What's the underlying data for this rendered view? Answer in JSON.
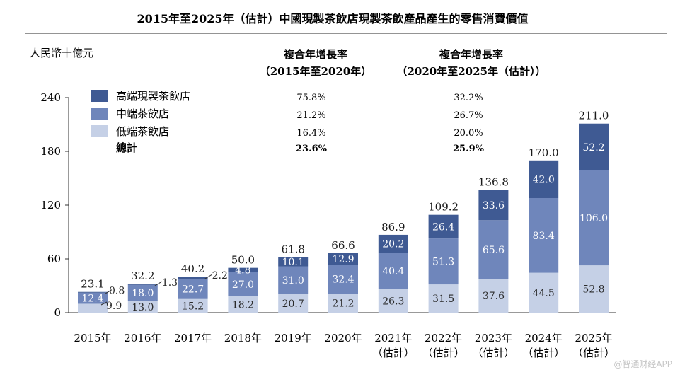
{
  "chart_data": {
    "type": "bar",
    "stacked": true,
    "title": "2015年至2025年（估計）中國現製茶飲店現製茶飲產品產生的零售消費價值",
    "ylabel": "人民幣十億元",
    "ylim": [
      0,
      240
    ],
    "yticks": [
      "0",
      "60",
      "120",
      "180",
      "240"
    ],
    "ytick_values": [
      0,
      60,
      120,
      180,
      240
    ],
    "categories": [
      [
        "2015年"
      ],
      [
        "2016年"
      ],
      [
        "2017年"
      ],
      [
        "2018年"
      ],
      [
        "2019年"
      ],
      [
        "2020年"
      ],
      [
        "2021年",
        "（估計）"
      ],
      [
        "2022年",
        "（估計）"
      ],
      [
        "2023年",
        "（估計）"
      ],
      [
        "2024年",
        "（估計）"
      ],
      [
        "2025年",
        "（估計）"
      ]
    ],
    "series": [
      {
        "name": "低端茶飲店",
        "color": "#c5d0e6",
        "label_color": "#2a2a2a",
        "values": [
          9.9,
          13.0,
          15.2,
          18.2,
          20.7,
          21.2,
          26.3,
          31.5,
          37.6,
          44.5,
          52.8
        ],
        "labels": [
          "9.9",
          "13.0",
          "15.2",
          "18.2",
          "20.7",
          "21.2",
          "26.3",
          "31.5",
          "37.6",
          "44.5",
          "52.8"
        ]
      },
      {
        "name": "中端茶飲店",
        "color": "#6f86bb",
        "label_color": "#ffffff",
        "values": [
          12.4,
          18.0,
          22.7,
          27.0,
          31.0,
          32.4,
          40.4,
          51.3,
          65.6,
          83.4,
          106.0
        ],
        "labels": [
          "12.4",
          "18.0",
          "22.7",
          "27.0",
          "31.0",
          "32.4",
          "40.4",
          "51.3",
          "65.6",
          "83.4",
          "106.0"
        ]
      },
      {
        "name": "高端現製茶飲店",
        "color": "#3f5a93",
        "label_color": "#ffffff",
        "values": [
          0.8,
          1.3,
          2.2,
          4.8,
          10.1,
          12.9,
          20.2,
          26.4,
          33.6,
          42.0,
          52.2
        ],
        "labels": [
          "0.8",
          "1.3",
          "2.2",
          "4.8",
          "10.1",
          "12.9",
          "20.2",
          "26.4",
          "33.6",
          "42.0",
          "52.2"
        ]
      }
    ],
    "totals": [
      23.1,
      32.2,
      40.2,
      50.0,
      61.8,
      66.6,
      86.9,
      109.2,
      136.8,
      170.0,
      211.0
    ],
    "total_labels": [
      "23.1",
      "32.2",
      "40.2",
      "50.0",
      "61.8",
      "66.6",
      "86.9",
      "109.2",
      "136.8",
      "170.0",
      "211.0"
    ]
  },
  "legend": {
    "items": [
      {
        "name": "高端現製茶飲店",
        "color": "#3f5a93"
      },
      {
        "name": "中端茶飲店",
        "color": "#6f86bb"
      },
      {
        "name": "低端茶飲店",
        "color": "#c5d0e6"
      }
    ],
    "total_label": "總計"
  },
  "cagr": {
    "col1_title": "複合年增長率",
    "col1_period": "（2015年至2020年）",
    "col1_values": [
      "75.8%",
      "21.2%",
      "16.4%",
      "23.6%"
    ],
    "col2_title": "複合年增長率",
    "col2_period": "（2020年至2025年（估計））",
    "col2_values": [
      "32.2%",
      "26.7%",
      "20.0%",
      "25.9%"
    ]
  },
  "watermark": "@智通财经APP"
}
